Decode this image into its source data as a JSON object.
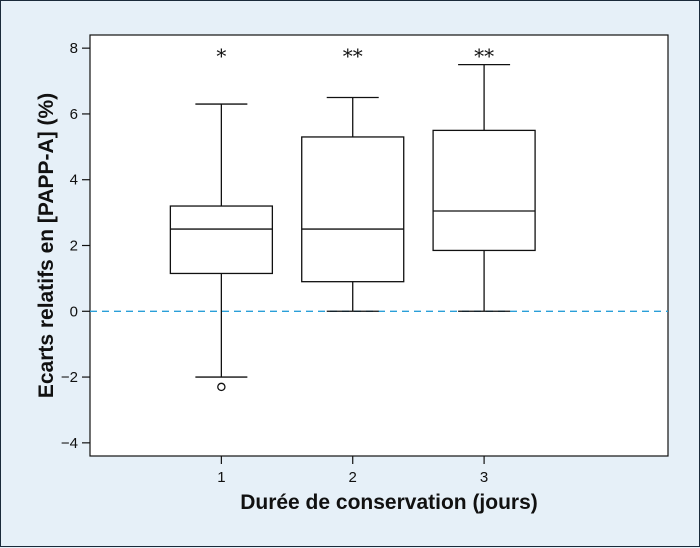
{
  "chart_data": {
    "type": "boxplot",
    "xlabel": "Durée de conservation (jours)",
    "ylabel": "Ecarts relatifs en [PAPP-A] (%)",
    "ylim": [
      -4.4,
      8.4
    ],
    "yticks": [
      -4,
      -2,
      0,
      2,
      4,
      6,
      8
    ],
    "ytick_labels": [
      "−4",
      "−2",
      "0",
      "2",
      "4",
      "6",
      "8"
    ],
    "xlim": [
      0,
      4.4
    ],
    "categories": [
      "1",
      "2",
      "3"
    ],
    "reference_line": {
      "value": 0,
      "style": "dashed",
      "color": "#2a9fd8"
    },
    "boxes": [
      {
        "x": 1,
        "whisker_low": -2.0,
        "q1": 1.15,
        "median": 2.5,
        "q3": 3.2,
        "whisker_high": 6.3,
        "outliers": [
          -2.3
        ],
        "significance": "*"
      },
      {
        "x": 2,
        "whisker_low": 0.0,
        "q1": 0.9,
        "median": 2.5,
        "q3": 5.3,
        "whisker_high": 6.5,
        "outliers": [],
        "significance": "**"
      },
      {
        "x": 3,
        "whisker_low": 0.0,
        "q1": 1.85,
        "median": 3.05,
        "q3": 5.5,
        "whisker_high": 7.5,
        "outliers": [],
        "significance": "**"
      }
    ],
    "grid": false
  }
}
